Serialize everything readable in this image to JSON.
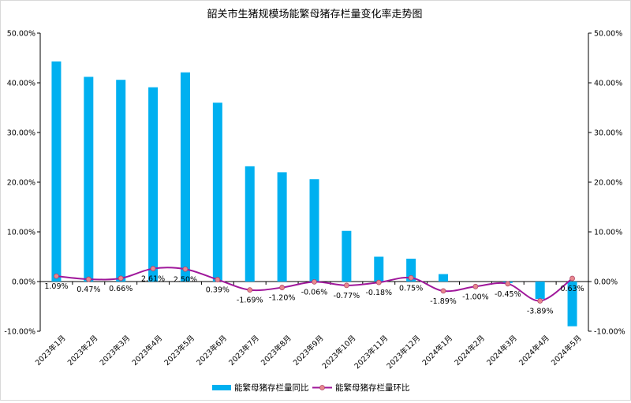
{
  "chart_data": {
    "type": "bar+line",
    "title": "韶关市生猪规模场能繁母猪存栏量变化率走势图",
    "categories": [
      "2023年1月",
      "2023年2月",
      "2023年3月",
      "2023年4月",
      "2023年5月",
      "2023年6月",
      "2023年7月",
      "2023年8月",
      "2023年9月",
      "2023年10月",
      "2023年11月",
      "2023年12月",
      "2024年1月",
      "2024年2月",
      "2024年3月",
      "2024年4月",
      "2024年5月"
    ],
    "series": [
      {
        "name": "能繁母猪存栏量同比",
        "type": "bar",
        "color": "#00b0f0",
        "values": [
          44.3,
          41.2,
          40.6,
          39.1,
          42.1,
          36.0,
          23.2,
          22.0,
          20.6,
          10.2,
          5.0,
          4.6,
          1.5,
          0.0,
          -0.3,
          -3.5,
          -9.0
        ]
      },
      {
        "name": "能繁母猪存栏量环比",
        "type": "line",
        "color": "#a0189b",
        "marker_color": "#e8888e",
        "values": [
          1.09,
          0.47,
          0.66,
          2.61,
          2.5,
          0.39,
          -1.69,
          -1.2,
          -0.06,
          -0.77,
          -0.18,
          0.75,
          -1.89,
          -1.0,
          -0.45,
          -3.89,
          0.63
        ],
        "labels": [
          "1.09%",
          "0.47%",
          "0.66%",
          "2.61%",
          "2.50%",
          "0.39%",
          "-1.69%",
          "-1.20%",
          "-0.06%",
          "-0.77%",
          "-0.18%",
          "0.75%",
          "-1.89%",
          "-1.00%",
          "-0.45%",
          "-3.89%",
          "0.63%"
        ]
      }
    ],
    "y_left": {
      "min": -10,
      "max": 50,
      "step": 10,
      "ticks": [
        "50.00%",
        "40.00%",
        "30.00%",
        "20.00%",
        "10.00%",
        "0.00%",
        "-10.00%"
      ]
    },
    "y_right": {
      "min": -10,
      "max": 50,
      "step": 10,
      "ticks": [
        "50.00%",
        "40.00%",
        "30.00%",
        "20.00%",
        "10.00%",
        "0.00%",
        "-10.00%"
      ]
    },
    "grid": false,
    "legend_position": "bottom"
  }
}
